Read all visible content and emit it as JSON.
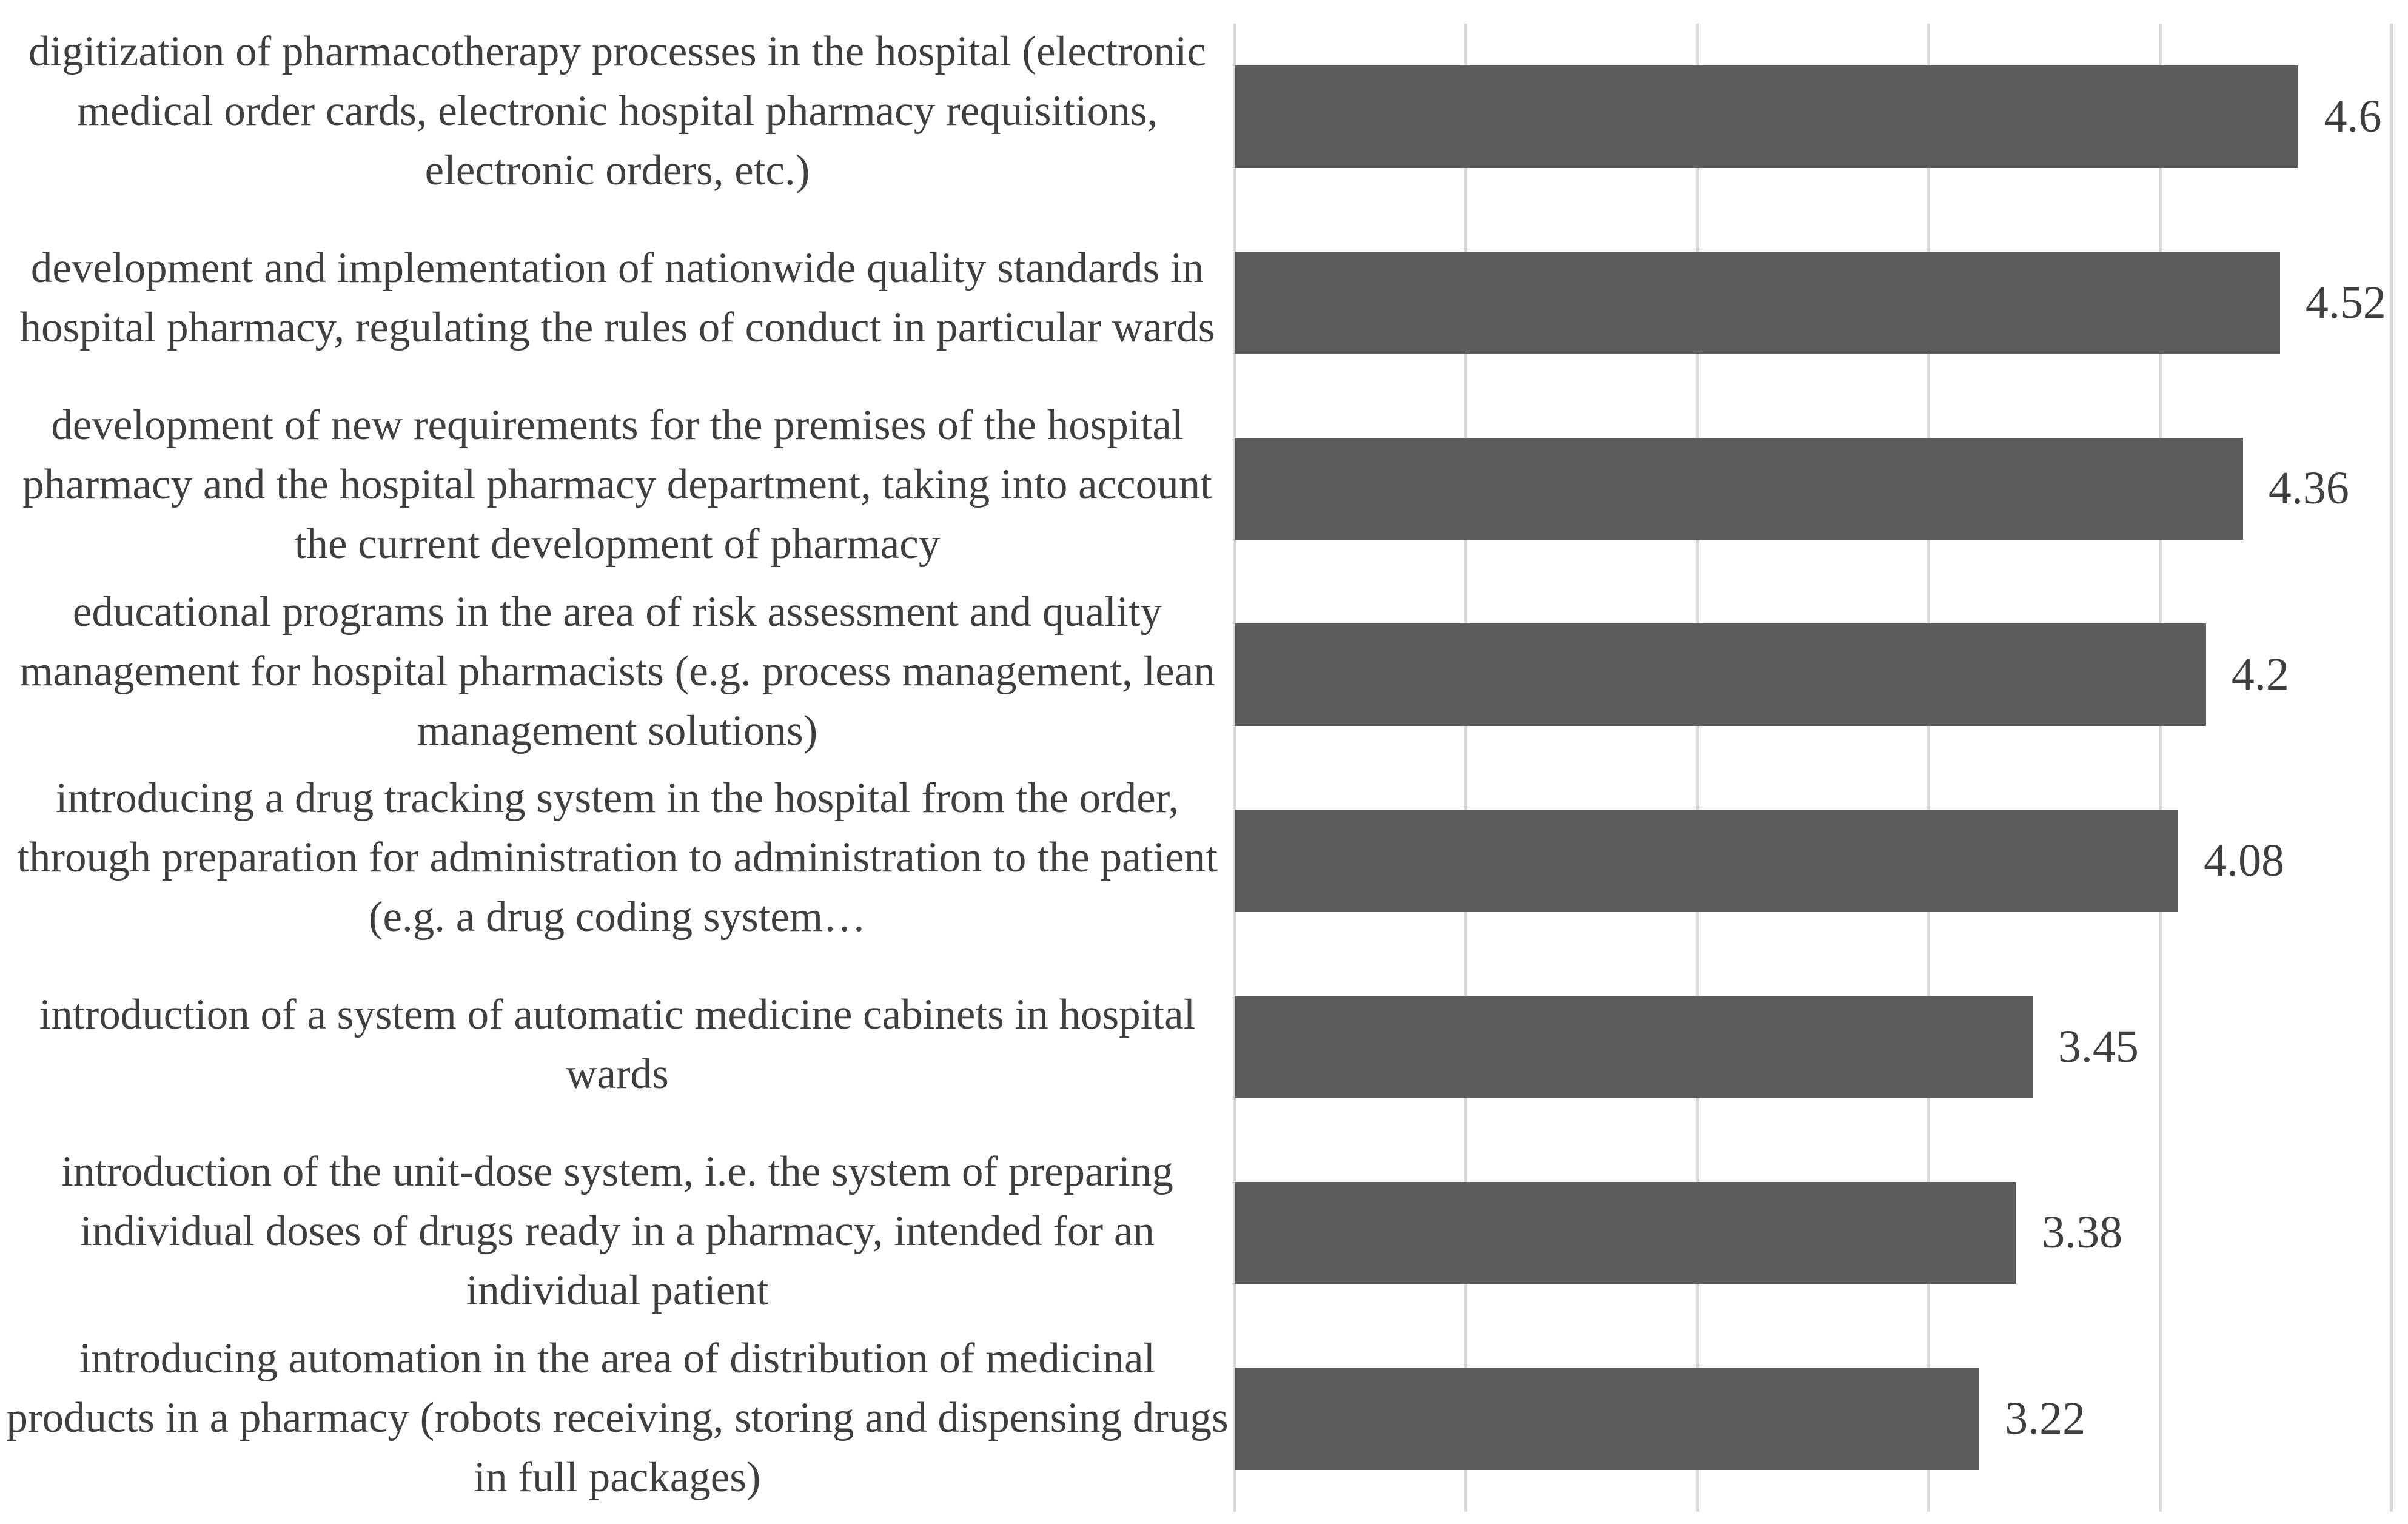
{
  "chart_data": {
    "type": "bar",
    "orientation": "horizontal",
    "title": "",
    "xlabel": "",
    "ylabel": "",
    "legend": "none",
    "grid": "vertical-major",
    "axis": {
      "min": 0,
      "max": 5,
      "gridline_values": [
        0,
        1,
        2,
        3,
        4,
        5
      ],
      "tick_labels_shown": false
    },
    "categories": [
      "digitization of pharmacotherapy processes in the hospital (electronic medical order cards, electronic hospital pharmacy requisitions, electronic orders, etc.)",
      "development and implementation of nationwide quality standards in hospital pharmacy, regulating the rules of conduct in particular wards",
      "development of new requirements for the premises of the hospital pharmacy and the hospital pharmacy department, taking into account the current development of pharmacy",
      "educational programs in the area of risk assessment and quality management for hospital pharmacists (e.g. process management, lean management solutions)",
      "introducing a drug tracking system in the hospital from the order, through preparation for administration to administration to the patient (e.g. a drug coding system…",
      "introduction of a system of automatic medicine cabinets in hospital wards",
      "introduction of the unit-dose system, i.e. the system of preparing individual doses of drugs ready in a pharmacy, intended for an individual patient",
      "introducing automation in the area of distribution of medicinal products in a pharmacy (robots receiving, storing and dispensing drugs in full packages)"
    ],
    "values": [
      4.6,
      4.52,
      4.36,
      4.2,
      4.08,
      3.45,
      3.38,
      3.22
    ],
    "value_labels": [
      "4.6",
      "4.52",
      "4.36",
      "4.2",
      "4.08",
      "3.45",
      "3.38",
      "3.22"
    ],
    "colors": {
      "bar": "#5c5c5c",
      "gridline": "#d9d9d9",
      "text": "#3f3f3f",
      "background": "#ffffff"
    }
  }
}
